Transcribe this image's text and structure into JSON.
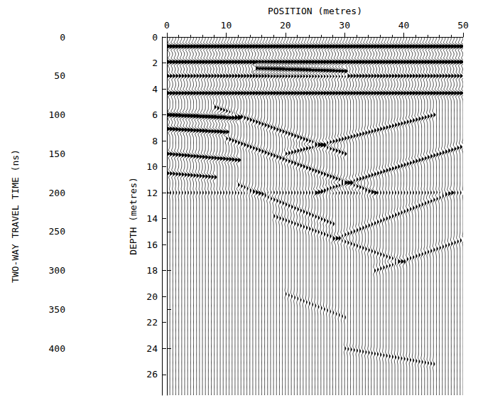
{
  "chart_data": {
    "type": "wiggle",
    "x_label": "POSITION (metres)",
    "y_label": "TWO-WAY TRAVEL TIME (ns)",
    "y2_label": "DEPTH (metres)",
    "xlim": [
      0,
      50
    ],
    "xticks": [
      0,
      10,
      20,
      30,
      40,
      50
    ],
    "ylim": [
      0,
      460
    ],
    "yticks": [
      0,
      50,
      100,
      150,
      200,
      250,
      300,
      350,
      400
    ],
    "y2lim": [
      0,
      27.6
    ],
    "y2ticks": [
      0,
      2,
      4,
      6,
      8,
      10,
      12,
      14,
      16,
      18,
      20,
      22,
      24,
      26
    ],
    "color": "#000000",
    "x": [
      0,
      0.5,
      1,
      1.5,
      2,
      2.5,
      3,
      3.5,
      4,
      4.5,
      5,
      5.5,
      6,
      6.5,
      7,
      7.5,
      8,
      8.5,
      9,
      9.5,
      10,
      10.5,
      11,
      11.5,
      12,
      12.5,
      13,
      13.5,
      14,
      14.5,
      15,
      15.5,
      16,
      16.5,
      17,
      17.5,
      18,
      18.5,
      19,
      19.5,
      20,
      20.5,
      21,
      21.5,
      22,
      22.5,
      23,
      23.5,
      24,
      24.5,
      25,
      25.5,
      26,
      26.5,
      27,
      27.5,
      28,
      28.5,
      29,
      29.5,
      30,
      30.5,
      31,
      31.5,
      32,
      32.5,
      33,
      33.5,
      34,
      34.5,
      35,
      35.5,
      36,
      36.5,
      37,
      37.5,
      38,
      38.5,
      39,
      39.5,
      40,
      40.5,
      41,
      41.5,
      42,
      42.5,
      43,
      43.5,
      44,
      44.5,
      45,
      45.5,
      46,
      46.5,
      47,
      47.5,
      48,
      48.5,
      49,
      49.5,
      50
    ],
    "events": [
      {
        "x": [
          0,
          50
        ],
        "t": [
          12,
          12
        ],
        "amplitude": 1.0
      },
      {
        "x": [
          0,
          50
        ],
        "t": [
          32,
          32
        ],
        "amplitude": 0.9
      },
      {
        "x": [
          15,
          30
        ],
        "t": [
          40,
          44
        ],
        "amplitude": 1.0
      },
      {
        "x": [
          0,
          50
        ],
        "t": [
          50,
          50
        ],
        "amplitude": 0.6
      },
      {
        "x": [
          0,
          50
        ],
        "t": [
          72,
          72
        ],
        "amplitude": 0.8
      },
      {
        "x": [
          0,
          12
        ],
        "t": [
          100,
          104
        ],
        "amplitude": 1.0
      },
      {
        "x": [
          0,
          10
        ],
        "t": [
          118,
          122
        ],
        "amplitude": 0.8
      },
      {
        "x": [
          0,
          12
        ],
        "t": [
          150,
          158
        ],
        "amplitude": 0.7
      },
      {
        "x": [
          0,
          8
        ],
        "t": [
          175,
          180
        ],
        "amplitude": 0.6
      },
      {
        "x": [
          8,
          30
        ],
        "t": [
          90,
          150
        ],
        "amplitude": 0.5
      },
      {
        "x": [
          20,
          45
        ],
        "t": [
          150,
          100
        ],
        "amplitude": 0.5
      },
      {
        "x": [
          10,
          35
        ],
        "t": [
          130,
          200
        ],
        "amplitude": 0.5
      },
      {
        "x": [
          25,
          50
        ],
        "t": [
          200,
          140
        ],
        "amplitude": 0.5
      },
      {
        "x": [
          12,
          28
        ],
        "t": [
          190,
          240
        ],
        "amplitude": 0.4
      },
      {
        "x": [
          28,
          48
        ],
        "t": [
          260,
          200
        ],
        "amplitude": 0.4
      },
      {
        "x": [
          18,
          40
        ],
        "t": [
          230,
          290
        ],
        "amplitude": 0.35
      },
      {
        "x": [
          35,
          50
        ],
        "t": [
          300,
          260
        ],
        "amplitude": 0.35
      },
      {
        "x": [
          0,
          50
        ],
        "t": [
          200,
          200
        ],
        "amplitude": 0.25
      },
      {
        "x": [
          20,
          30
        ],
        "t": [
          330,
          360
        ],
        "amplitude": 0.25
      },
      {
        "x": [
          30,
          45
        ],
        "t": [
          400,
          420
        ],
        "amplitude": 0.3
      }
    ]
  }
}
